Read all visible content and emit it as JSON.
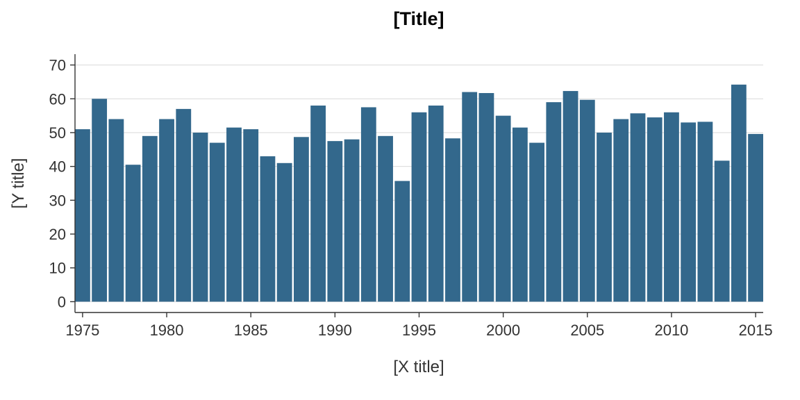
{
  "chart_data": {
    "type": "bar",
    "title": "[Title]",
    "xlabel": "[X title]",
    "ylabel": "[Y title]",
    "x": [
      1975,
      1976,
      1977,
      1978,
      1979,
      1980,
      1981,
      1982,
      1983,
      1984,
      1985,
      1986,
      1987,
      1988,
      1989,
      1990,
      1991,
      1992,
      1993,
      1994,
      1995,
      1996,
      1997,
      1998,
      1999,
      2000,
      2001,
      2002,
      2003,
      2004,
      2005,
      2006,
      2007,
      2008,
      2009,
      2010,
      2011,
      2012,
      2013,
      2014,
      2015
    ],
    "values": [
      51,
      60,
      54,
      40.5,
      49,
      54,
      57,
      50,
      47,
      51.5,
      51,
      43,
      41,
      48.7,
      58,
      47.5,
      48,
      57.5,
      49,
      35.7,
      56,
      58,
      48.3,
      62,
      61.7,
      55,
      51.5,
      47,
      59,
      62.3,
      59.7,
      50,
      54,
      55.7,
      54.5,
      56,
      53,
      53.2,
      41.7,
      64.2,
      49.6
    ],
    "xticks": [
      1975,
      1980,
      1985,
      1990,
      1995,
      2000,
      2005,
      2010,
      2015
    ],
    "yticks": [
      0,
      10,
      20,
      30,
      40,
      50,
      60,
      70
    ],
    "ylim": [
      -3.2,
      73.2
    ],
    "grid": "horizontal",
    "colors": {
      "bar": "#33688c",
      "grid": "#d9d9d9",
      "axis": "#333333"
    }
  }
}
